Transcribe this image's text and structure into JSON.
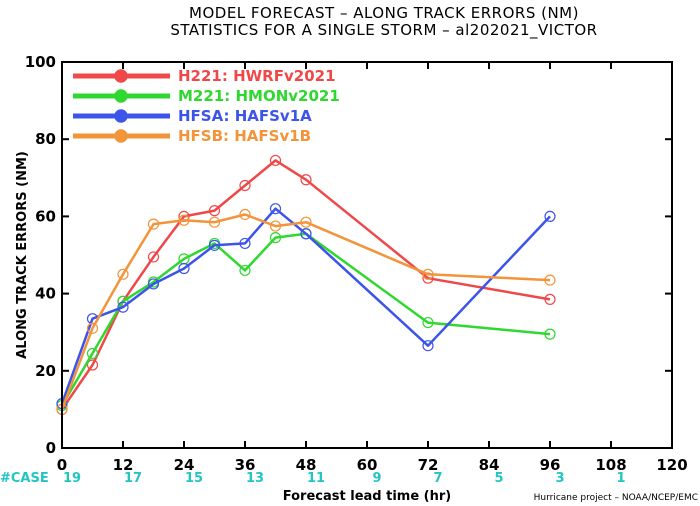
{
  "chart_data": {
    "type": "line",
    "title": "MODEL FORECAST – ALONG TRACK ERRORS (NM)",
    "subtitle": "STATISTICS FOR A SINGLE STORM – al202021_VICTOR",
    "xlabel": "Forecast lead time (hr)",
    "ylabel": "ALONG TRACK ERRORS (NM)",
    "xlim": [
      0,
      120
    ],
    "ylim": [
      0,
      100
    ],
    "xticks": [
      0,
      12,
      24,
      36,
      48,
      60,
      72,
      84,
      96,
      108,
      120
    ],
    "yticks": [
      0,
      20,
      40,
      60,
      80,
      100
    ],
    "grid": false,
    "legend_position": "top-left",
    "case_label": "#CASE",
    "cases": [
      {
        "x": 0,
        "n": "19"
      },
      {
        "x": 12,
        "n": "17"
      },
      {
        "x": 24,
        "n": "15"
      },
      {
        "x": 36,
        "n": "13"
      },
      {
        "x": 48,
        "n": "11"
      },
      {
        "x": 60,
        "n": "9"
      },
      {
        "x": 72,
        "n": "7"
      },
      {
        "x": 84,
        "n": "5"
      },
      {
        "x": 96,
        "n": "3"
      },
      {
        "x": 108,
        "n": "1"
      }
    ],
    "credit": "Hurricane project – NOAA/NCEP/EMC",
    "series": [
      {
        "name": "H221: HWRFv2021",
        "color": "#f04848",
        "x": [
          0,
          6,
          12,
          18,
          24,
          30,
          36,
          42,
          48,
          72,
          96
        ],
        "y": [
          10,
          21.5,
          38,
          49.5,
          60,
          61.5,
          68,
          74.5,
          69.5,
          44,
          38.5
        ]
      },
      {
        "name": "M221: HMONv2021",
        "color": "#2ed82e",
        "x": [
          0,
          6,
          12,
          18,
          24,
          30,
          36,
          42,
          48,
          72,
          96
        ],
        "y": [
          11,
          24.5,
          38,
          43,
          49,
          53,
          46,
          54.5,
          55.5,
          32.5,
          29.5
        ]
      },
      {
        "name": "HFSA: HAFSv1A",
        "color": "#3c54ea",
        "x": [
          0,
          6,
          12,
          18,
          24,
          30,
          36,
          42,
          48,
          72,
          96
        ],
        "y": [
          11.5,
          33.5,
          36.5,
          42.5,
          46.5,
          52.5,
          53,
          62,
          55.5,
          26.5,
          60
        ]
      },
      {
        "name": "HFSB: HAFSv1B",
        "color": "#f2943a",
        "x": [
          0,
          6,
          12,
          18,
          24,
          30,
          36,
          42,
          48,
          72,
          96
        ],
        "y": [
          10,
          31,
          45,
          58,
          59,
          58.5,
          60.5,
          57.5,
          58.5,
          45,
          43.5
        ]
      }
    ]
  }
}
